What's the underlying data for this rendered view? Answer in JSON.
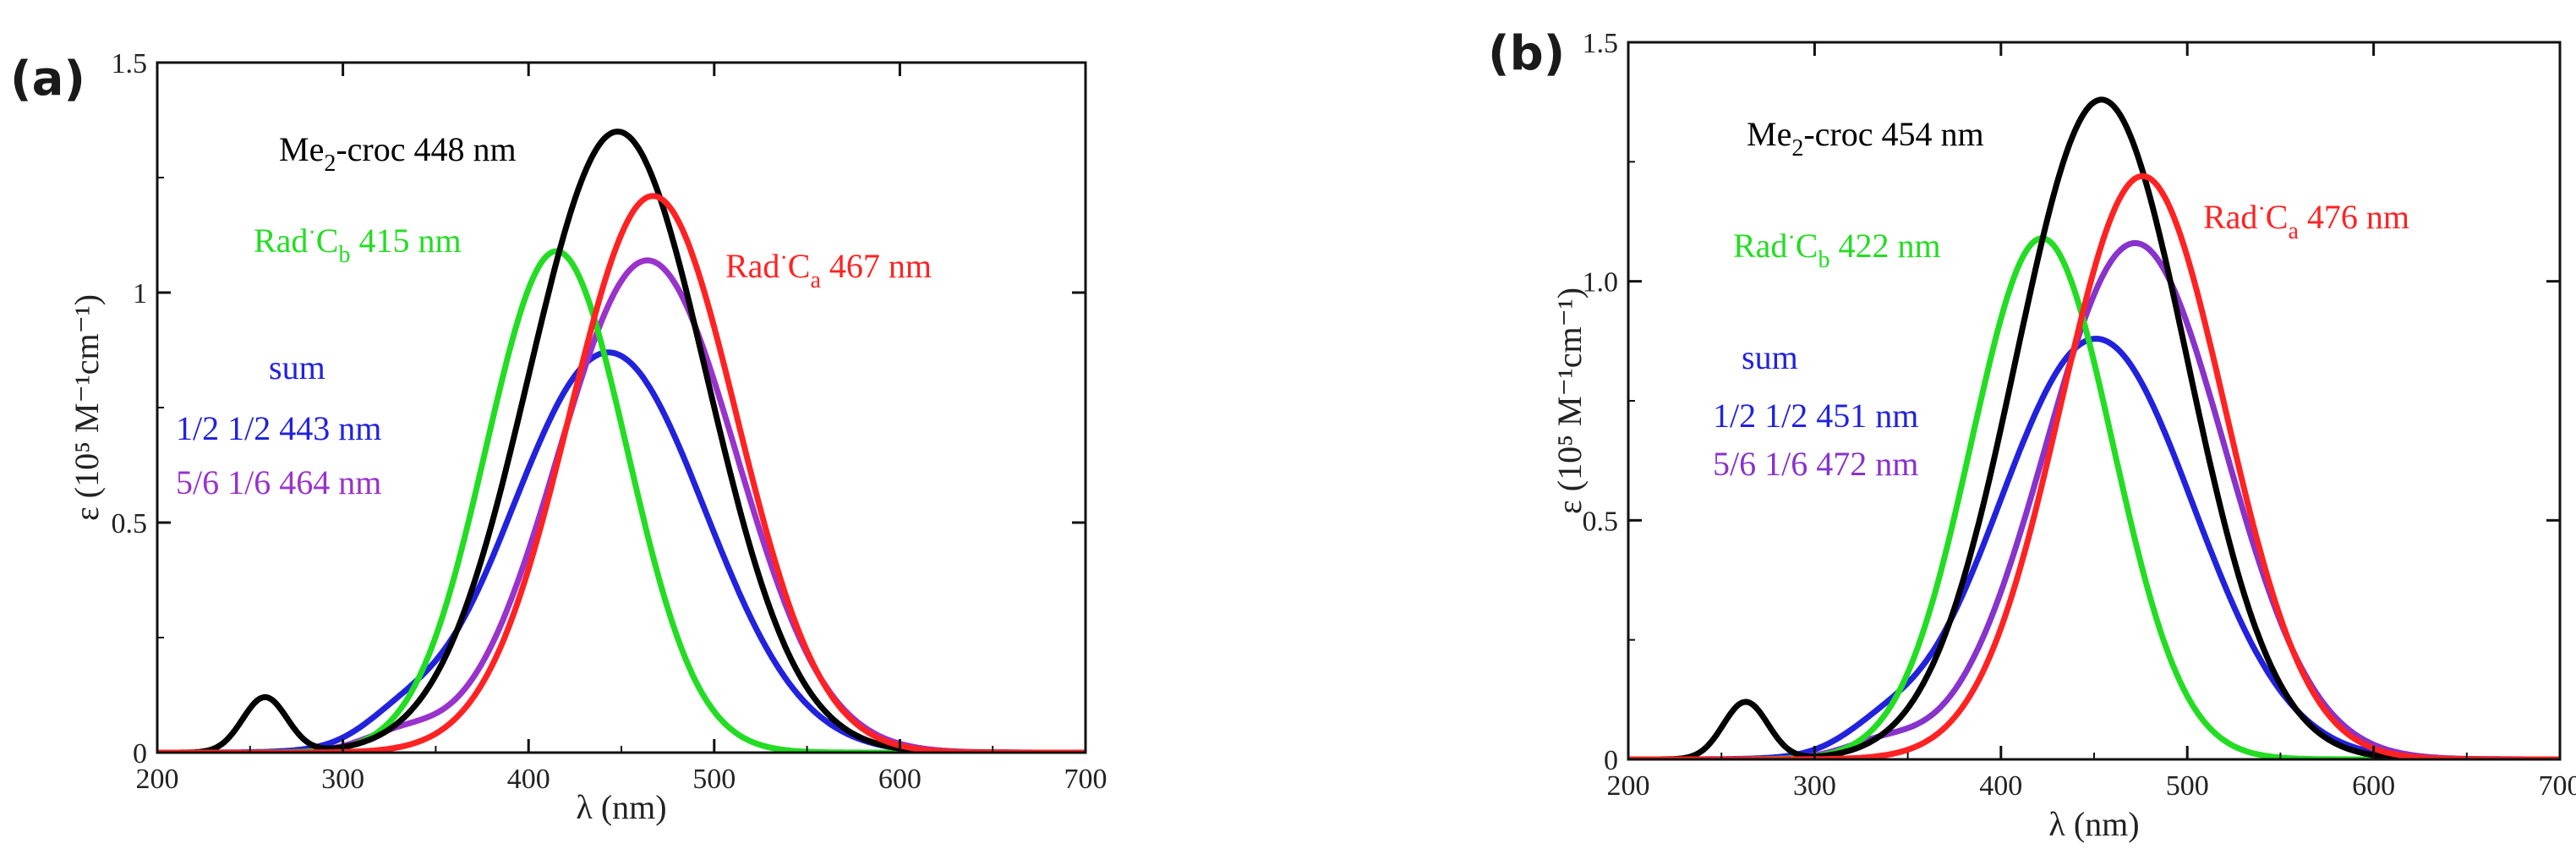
{
  "chart_data": [
    {
      "type": "line",
      "panel_label": "(a)",
      "xlabel": "λ  (nm)",
      "ylabel": "ε (10⁵ M⁻¹cm⁻¹)",
      "xlim": [
        200,
        700
      ],
      "ylim": [
        0,
        1.5
      ],
      "xticks": [
        200,
        300,
        400,
        500,
        600,
        700
      ],
      "xtick_labels": [
        "200",
        "300",
        "400",
        "500",
        "600",
        "700"
      ],
      "yticks": [
        0,
        0.5,
        1,
        1.5
      ],
      "ytick_labels": [
        "0",
        "0.5",
        "1",
        "1.5"
      ],
      "series": [
        {
          "name": "Me2-croc",
          "color": "#000000",
          "bands": [
            {
              "center": 448,
              "amp": 1.35,
              "w": 48
            },
            {
              "center": 258,
              "amp": 0.12,
              "w": 12
            }
          ]
        },
        {
          "name": "Rad·Ca",
          "color": "#ff2222",
          "bands": [
            {
              "center": 467,
              "amp": 1.21,
              "w": 45
            }
          ]
        },
        {
          "name": "Rad·Cb",
          "color": "#22dd22",
          "bands": [
            {
              "center": 415,
              "amp": 1.09,
              "w": 38
            }
          ]
        },
        {
          "name": "sum 1/2 1/2",
          "color": "#2222dd",
          "bands": [
            {
              "center": 443,
              "amp": 0.87,
              "w": 52
            },
            {
              "center": 330,
              "amp": 0.04,
              "w": 20
            }
          ]
        },
        {
          "name": "sum 5/6 1/6",
          "color": "#9933cc",
          "bands": [
            {
              "center": 464,
              "amp": 1.07,
              "w": 48
            },
            {
              "center": 330,
              "amp": 0.035,
              "w": 20
            }
          ]
        }
      ],
      "annotations": [
        {
          "pre": "Me",
          "sub": "2",
          "post": "-croc 448 nm",
          "color": "#000000"
        },
        {
          "pre": "Rad",
          "sup": "·",
          "mid": "C",
          "sub": "b",
          "post": " 415 nm",
          "color": "#22dd22"
        },
        {
          "pre": "Rad",
          "sup": "·",
          "mid": "C",
          "sub": "a",
          "post": " 467 nm",
          "color": "#ff2222"
        },
        {
          "text": "sum",
          "color": "#2222dd"
        },
        {
          "text": "1/2 1/2  443 nm",
          "color": "#2222dd"
        },
        {
          "text": "5/6 1/6  464 nm",
          "color": "#9933cc"
        }
      ]
    },
    {
      "type": "line",
      "panel_label": "(b)",
      "xlabel": "λ (nm)",
      "ylabel": "ε (10⁵ M⁻¹cm⁻¹)",
      "xlim": [
        200,
        700
      ],
      "ylim": [
        0,
        1.5
      ],
      "xticks": [
        200,
        300,
        400,
        500,
        600,
        700
      ],
      "xtick_labels": [
        "200",
        "300",
        "400",
        "500",
        "600",
        "700"
      ],
      "yticks": [
        0,
        0.5,
        1.0,
        1.5
      ],
      "ytick_labels": [
        "0",
        "0.5",
        "1.0",
        "1.5"
      ],
      "series": [
        {
          "name": "Me2-croc",
          "color": "#000000",
          "bands": [
            {
              "center": 454,
              "amp": 1.38,
              "w": 46
            },
            {
              "center": 263,
              "amp": 0.12,
              "w": 12
            }
          ]
        },
        {
          "name": "Rad·Ca",
          "color": "#ff2222",
          "bands": [
            {
              "center": 476,
              "amp": 1.22,
              "w": 44
            }
          ]
        },
        {
          "name": "Rad·Cb",
          "color": "#22dd22",
          "bands": [
            {
              "center": 422,
              "amp": 1.09,
              "w": 38
            }
          ]
        },
        {
          "name": "sum 1/2 1/2",
          "color": "#2222dd",
          "bands": [
            {
              "center": 451,
              "amp": 0.88,
              "w": 52
            },
            {
              "center": 335,
              "amp": 0.035,
              "w": 20
            }
          ]
        },
        {
          "name": "sum 5/6 1/6",
          "color": "#8833cc",
          "bands": [
            {
              "center": 472,
              "amp": 1.08,
              "w": 48
            },
            {
              "center": 335,
              "amp": 0.03,
              "w": 20
            }
          ]
        }
      ],
      "annotations": [
        {
          "pre": "Me",
          "sub": "2",
          "post": "-croc 454 nm",
          "color": "#000000"
        },
        {
          "pre": "Rad",
          "sup": "·",
          "mid": "C",
          "sub": "b",
          "post": " 422 nm",
          "color": "#22dd22"
        },
        {
          "pre": "Rad",
          "sup": "·",
          "mid": "C",
          "sub": "a",
          "post": " 476 nm",
          "color": "#ff2222"
        },
        {
          "text": "sum",
          "color": "#2222dd"
        },
        {
          "text": "1/2 1/2  451 nm",
          "color": "#2222dd"
        },
        {
          "text": "5/6 1/6  472 nm",
          "color": "#8833cc"
        }
      ]
    }
  ]
}
